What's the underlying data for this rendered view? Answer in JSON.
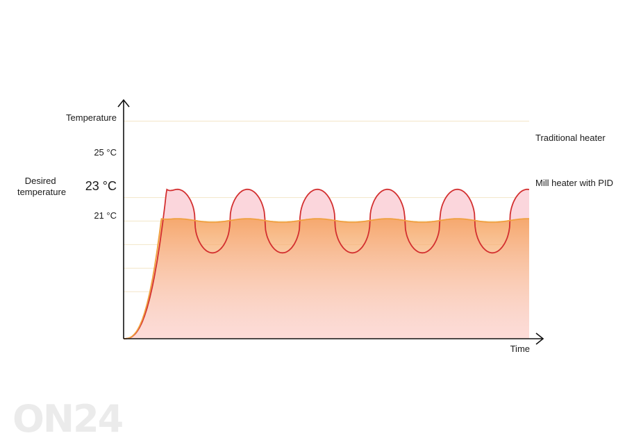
{
  "chart_data": {
    "type": "line",
    "ylabel": "Temperature",
    "xlabel": "Time",
    "ylim": [
      13,
      32
    ],
    "y_ticks": [
      {
        "value": 25,
        "label": "25 °C"
      },
      {
        "value": 23,
        "label": "23 °C"
      },
      {
        "value": 21,
        "label": "21 °C"
      }
    ],
    "desired_label": "Desired temperature",
    "desired_value": 23,
    "grid": true,
    "series": [
      {
        "name": "Traditional heater",
        "color": "#d32f2f",
        "fill": "#fbd6dc",
        "start": 13.0,
        "rise_end": 1.2,
        "min": 20.3,
        "max": 25.7,
        "period": 1.95,
        "first_peak": 1.5
      },
      {
        "name": "Mill heater with PID",
        "color": "#f0a040",
        "fill": "#f5a05a",
        "start": 13.0,
        "rise_end": 1.05,
        "min": 22.9,
        "max": 23.2,
        "period": 1.95,
        "first_peak": 1.5
      }
    ],
    "x_range": [
      0,
      11.3
    ]
  },
  "watermark": "ON24"
}
